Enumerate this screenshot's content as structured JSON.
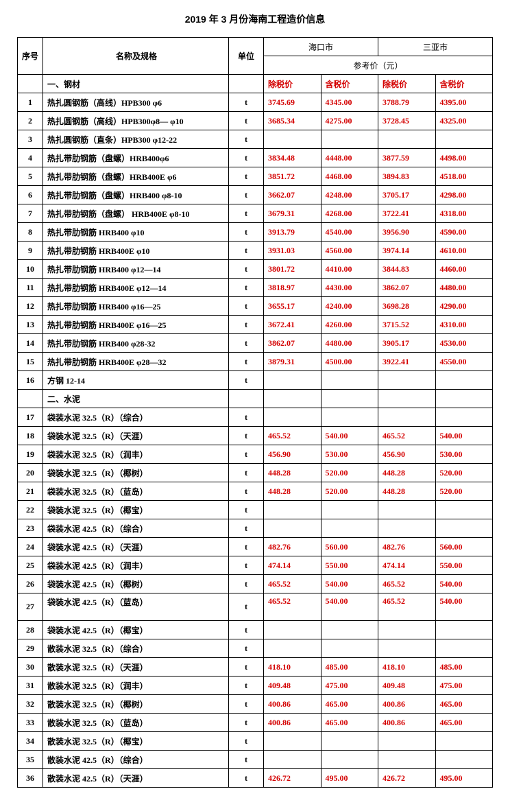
{
  "title": "2019 年 3 月份海南工程造价信息",
  "header": {
    "idx": "序号",
    "name": "名称及规格",
    "unit": "单位",
    "city1": "海口市",
    "city2": "三亚市",
    "ref": "参考价（元）",
    "ex": "除税价",
    "inc": "含税价"
  },
  "sections": [
    {
      "label": "一、钢材",
      "rows": [
        {
          "n": "1",
          "name": "热扎圆钢筋（高线）HPB300 φ6",
          "u": "t",
          "p": [
            "3745.69",
            "4345.00",
            "3788.79",
            "4395.00"
          ]
        },
        {
          "n": "2",
          "name": "热扎圆钢筋（高线）HPB300φ8— φ10",
          "u": "t",
          "p": [
            "3685.34",
            "4275.00",
            "3728.45",
            "4325.00"
          ]
        },
        {
          "n": "3",
          "name": "热扎圆钢筋（直条）HPB300 φ12-22",
          "u": "t",
          "p": [
            "",
            "",
            "",
            ""
          ]
        },
        {
          "n": "4",
          "name": "热扎带肋钢筋（盘螺）HRB400φ6",
          "u": "t",
          "p": [
            "3834.48",
            "4448.00",
            "3877.59",
            "4498.00"
          ]
        },
        {
          "n": "5",
          "name": "热扎带肋钢筋（盘螺）HRB400E φ6",
          "u": "t",
          "p": [
            "3851.72",
            "4468.00",
            "3894.83",
            "4518.00"
          ]
        },
        {
          "n": "6",
          "name": "热扎带肋钢筋（盘螺）HRB400 φ8-10",
          "u": "t",
          "p": [
            "3662.07",
            "4248.00",
            "3705.17",
            "4298.00"
          ]
        },
        {
          "n": "7",
          "name": "热扎带肋钢筋（盘螺） HRB400E φ8-10",
          "u": "t",
          "p": [
            "3679.31",
            "4268.00",
            "3722.41",
            "4318.00"
          ]
        },
        {
          "n": "8",
          "name": "热扎带肋钢筋  HRB400    φ10",
          "u": "t",
          "p": [
            "3913.79",
            "4540.00",
            "3956.90",
            "4590.00"
          ]
        },
        {
          "n": "9",
          "name": "热扎带肋钢筋  HRB400E   φ10",
          "u": "t",
          "p": [
            "3931.03",
            "4560.00",
            "3974.14",
            "4610.00"
          ]
        },
        {
          "n": "10",
          "name": "热扎带肋钢筋  HRB400     φ12—14",
          "u": "t",
          "p": [
            "3801.72",
            "4410.00",
            "3844.83",
            "4460.00"
          ]
        },
        {
          "n": "11",
          "name": "热扎带肋钢筋  HRB400E    φ12—14",
          "u": "t",
          "p": [
            "3818.97",
            "4430.00",
            "3862.07",
            "4480.00"
          ]
        },
        {
          "n": "12",
          "name": "热扎带肋钢筋  HRB400     φ16—25",
          "u": "t",
          "p": [
            "3655.17",
            "4240.00",
            "3698.28",
            "4290.00"
          ]
        },
        {
          "n": "13",
          "name": "热扎带肋钢筋  HRB400E   φ16—25",
          "u": "t",
          "p": [
            "3672.41",
            "4260.00",
            "3715.52",
            "4310.00"
          ]
        },
        {
          "n": "14",
          "name": "热扎带肋钢筋  HRB400   φ28-32",
          "u": "t",
          "p": [
            "3862.07",
            "4480.00",
            "3905.17",
            "4530.00"
          ]
        },
        {
          "n": "15",
          "name": "热扎带肋钢筋  HRB400E   φ28—32",
          "u": "t",
          "p": [
            "3879.31",
            "4500.00",
            "3922.41",
            "4550.00"
          ]
        },
        {
          "n": "16",
          "name": "方钢   12-14",
          "u": "t",
          "p": [
            "",
            "",
            "",
            ""
          ]
        }
      ]
    },
    {
      "label": "二、水泥",
      "rows": [
        {
          "n": "17",
          "name": "袋装水泥 32.5（R）（综合）",
          "u": "t",
          "p": [
            "",
            "",
            "",
            ""
          ]
        },
        {
          "n": "18",
          "name": "袋装水泥 32.5（R）（天涯）",
          "u": "t",
          "p": [
            "465.52",
            "540.00",
            "465.52",
            "540.00"
          ]
        },
        {
          "n": "19",
          "name": "袋装水泥 32.5（R）（润丰）",
          "u": "t",
          "p": [
            "456.90",
            "530.00",
            "456.90",
            "530.00"
          ]
        },
        {
          "n": "20",
          "name": "袋装水泥 32.5（R）（椰树）",
          "u": "t",
          "p": [
            "448.28",
            "520.00",
            "448.28",
            "520.00"
          ]
        },
        {
          "n": "21",
          "name": "袋装水泥 32.5（R）（蓝岛）",
          "u": "t",
          "p": [
            "448.28",
            "520.00",
            "448.28",
            "520.00"
          ]
        },
        {
          "n": "22",
          "name": "袋装水泥 32.5（R）（椰宝）",
          "u": "t",
          "p": [
            "",
            "",
            "",
            ""
          ]
        },
        {
          "n": "23",
          "name": "袋装水泥 42.5（R）（综合）",
          "u": "t",
          "p": [
            "",
            "",
            "",
            ""
          ]
        },
        {
          "n": "24",
          "name": "袋装水泥 42.5（R）（天涯）",
          "u": "t",
          "p": [
            "482.76",
            "560.00",
            "482.76",
            "560.00"
          ]
        },
        {
          "n": "25",
          "name": "袋装水泥 42.5（R）（润丰）",
          "u": "t",
          "p": [
            "474.14",
            "550.00",
            "474.14",
            "550.00"
          ]
        },
        {
          "n": "26",
          "name": "袋装水泥 42.5（R）（椰树）",
          "u": "t",
          "p": [
            "465.52",
            "540.00",
            "465.52",
            "540.00"
          ]
        },
        {
          "n": "27",
          "name": "袋装水泥 42.5（R）（蓝岛）",
          "u": "t",
          "p": [
            "465.52",
            "540.00",
            "465.52",
            "540.00"
          ],
          "tall": true
        },
        {
          "n": "28",
          "name": "袋装水泥 42.5（R）（椰宝）",
          "u": "t",
          "p": [
            "",
            "",
            "",
            ""
          ]
        },
        {
          "n": "29",
          "name": "散装水泥 32.5（R）（综合）",
          "u": "t",
          "p": [
            "",
            "",
            "",
            ""
          ]
        },
        {
          "n": "30",
          "name": "散装水泥 32.5（R）（天涯）",
          "u": "t",
          "p": [
            "418.10",
            "485.00",
            "418.10",
            "485.00"
          ]
        },
        {
          "n": "31",
          "name": "散装水泥 32.5（R）（润丰）",
          "u": "t",
          "p": [
            "409.48",
            "475.00",
            "409.48",
            "475.00"
          ]
        },
        {
          "n": "32",
          "name": "散装水泥 32.5（R）（椰树）",
          "u": "t",
          "p": [
            "400.86",
            "465.00",
            "400.86",
            "465.00"
          ]
        },
        {
          "n": "33",
          "name": "散装水泥 32.5（R）（蓝岛）",
          "u": "t",
          "p": [
            "400.86",
            "465.00",
            "400.86",
            "465.00"
          ]
        },
        {
          "n": "34",
          "name": "散装水泥 32.5（R）（椰宝）",
          "u": "t",
          "p": [
            "",
            "",
            "",
            ""
          ]
        },
        {
          "n": "35",
          "name": "散装水泥 42.5（R）（综合）",
          "u": "t",
          "p": [
            "",
            "",
            "",
            ""
          ]
        },
        {
          "n": "36",
          "name": "散装水泥 42.5（R）（天涯）",
          "u": "t",
          "p": [
            "426.72",
            "495.00",
            "426.72",
            "495.00"
          ]
        }
      ]
    }
  ]
}
